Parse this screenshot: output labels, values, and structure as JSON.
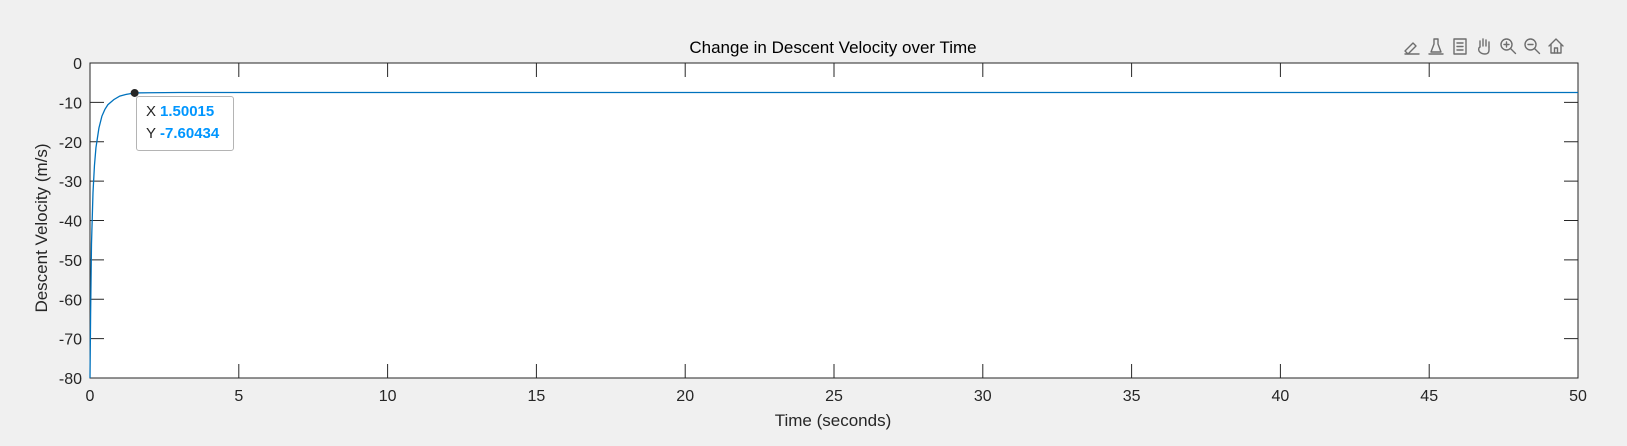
{
  "toolbar": {
    "buttons": [
      {
        "name": "brush-icon"
      },
      {
        "name": "data-tips-icon"
      },
      {
        "name": "text-editor-icon"
      },
      {
        "name": "pan-hand-icon"
      },
      {
        "name": "zoom-in-icon"
      },
      {
        "name": "zoom-out-icon"
      },
      {
        "name": "home-icon"
      }
    ]
  },
  "datatip": {
    "x_label": "X",
    "x_value": "1.50015",
    "y_label": "Y",
    "y_value": "-7.60434"
  },
  "colors": {
    "line": "#0072bd",
    "datatip_value": "#0096ff",
    "figure_background": "#f0f0f0"
  },
  "chart_data": {
    "type": "line",
    "title": "Change in Descent Velocity over Time",
    "xlabel": "Time (seconds)",
    "ylabel": "Descent Velocity (m/s)",
    "xlim": [
      0,
      50
    ],
    "ylim": [
      -80,
      0
    ],
    "xticks": [
      0,
      5,
      10,
      15,
      20,
      25,
      30,
      35,
      40,
      45,
      50
    ],
    "yticks": [
      0,
      -10,
      -20,
      -30,
      -40,
      -50,
      -60,
      -70,
      -80
    ],
    "grid": false,
    "series": [
      {
        "x": [
          0,
          0.02,
          0.05,
          0.1,
          0.15,
          0.2,
          0.3,
          0.4,
          0.5,
          0.6,
          0.8,
          1.0,
          1.2,
          1.5,
          2,
          3,
          5,
          10,
          20,
          30,
          40,
          50
        ],
        "y": [
          -80,
          -64,
          -46,
          -33,
          -26,
          -21.5,
          -16.5,
          -13.5,
          -11.8,
          -10.6,
          -9.3,
          -8.4,
          -8.0,
          -7.6,
          -7.55,
          -7.5,
          -7.5,
          -7.5,
          -7.5,
          -7.5,
          -7.5,
          -7.5
        ]
      }
    ],
    "marker": {
      "x": 1.50015,
      "y": -7.60434
    }
  }
}
